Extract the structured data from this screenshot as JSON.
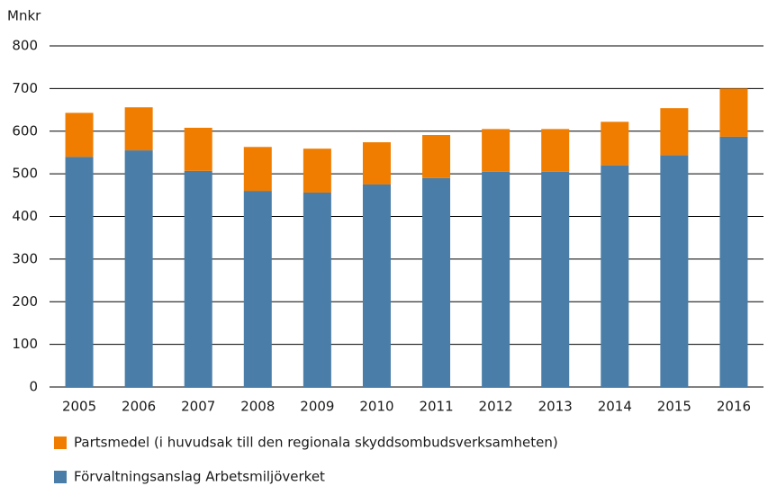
{
  "chart_data": {
    "type": "stacked_bar",
    "y_label": "Mnkr",
    "categories": [
      "2005",
      "2006",
      "2007",
      "2008",
      "2009",
      "2010",
      "2011",
      "2012",
      "2013",
      "2014",
      "2015",
      "2016"
    ],
    "series": [
      {
        "name": "Förvaltningsanslag Arbetsmiljöverket",
        "color": "#4a7ea8",
        "values": [
          540,
          555,
          507,
          460,
          456,
          475,
          490,
          505,
          505,
          520,
          544,
          587
        ]
      },
      {
        "name": "Partsmedel (i huvudsak till den regionala skyddsombudsverksamheten)",
        "color": "#f07d00",
        "values": [
          103,
          101,
          101,
          103,
          103,
          99,
          101,
          100,
          100,
          102,
          110,
          113
        ]
      }
    ],
    "ylim": [
      0,
      800
    ],
    "yticks": [
      0,
      100,
      200,
      300,
      400,
      500,
      600,
      700,
      800
    ],
    "grid": true
  }
}
